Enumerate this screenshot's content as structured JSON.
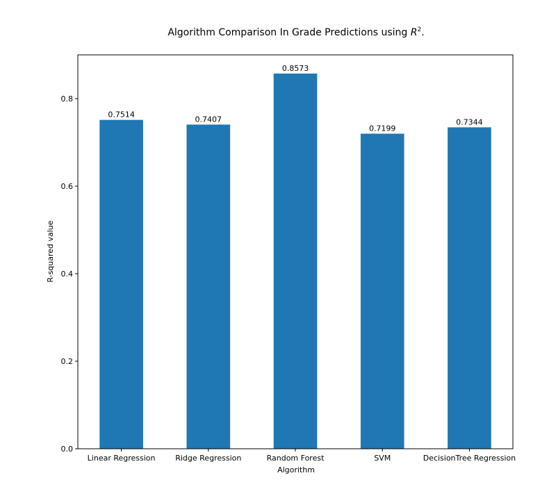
{
  "chart_data": {
    "type": "bar",
    "title_prefix": "Algorithm Comparison In Grade Predictions using ",
    "title_var": "R",
    "title_sup": "2",
    "title_suffix": ".",
    "xlabel": "Algorithm",
    "ylabel": "R-squared value",
    "categories": [
      "Linear Regression",
      "Ridge Regression",
      "Random Forest",
      "SVM",
      "DecisionTree Regression"
    ],
    "values": [
      0.7514,
      0.7407,
      0.8573,
      0.7199,
      0.7344
    ],
    "value_labels": [
      "0.7514",
      "0.7407",
      "0.8573",
      "0.7199",
      "0.7344"
    ],
    "ylim": [
      0,
      0.9
    ],
    "yticks": [
      0.0,
      0.2,
      0.4,
      0.6,
      0.8
    ],
    "ytick_labels": [
      "0.0",
      "0.2",
      "0.4",
      "0.6",
      "0.8"
    ],
    "bar_color": "#1f77b4",
    "grid": false,
    "legend": "none"
  }
}
